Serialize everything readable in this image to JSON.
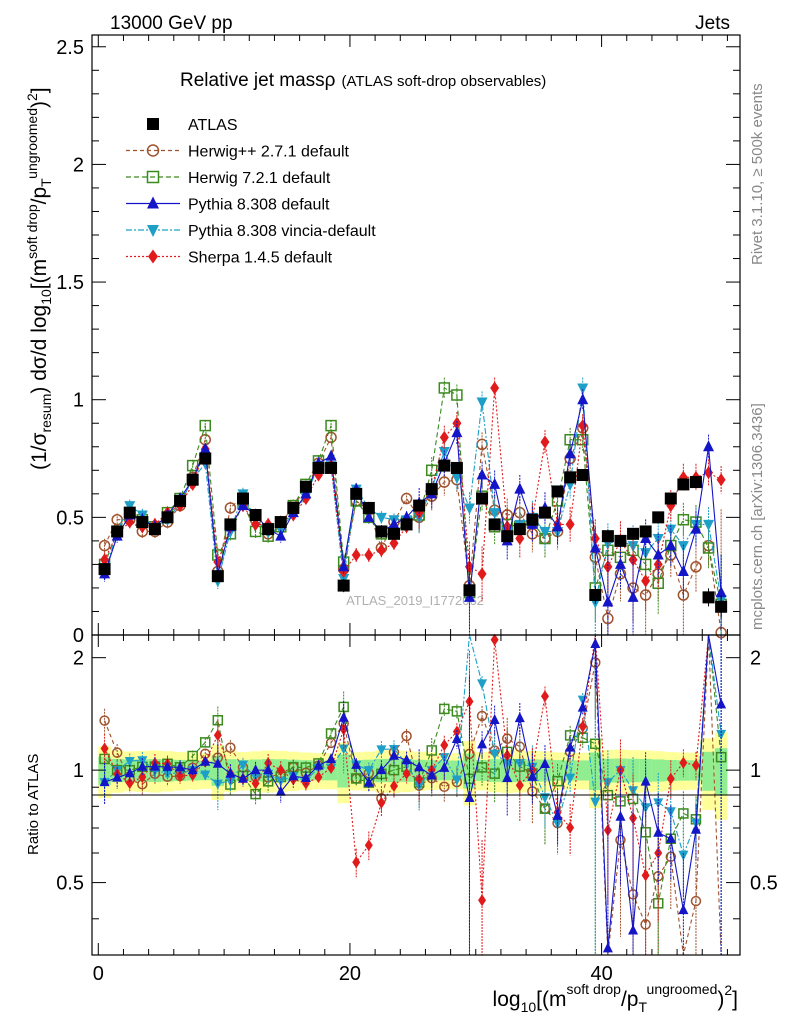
{
  "header": {
    "energy_label": "13000 GeV pp",
    "process_label": "Jets"
  },
  "side": {
    "rivet_label": "Rivet 3.1.10, ≥ 500k events",
    "mcplots_label": "mcplots.cern.ch [arXiv:1306.3436]"
  },
  "watermark": "ATLAS_2019_I1772062",
  "colors": {
    "atlas": "#000000",
    "herwigpp": "#a0522d",
    "herwig7": "#3a8a1e",
    "pythia": "#1515c8",
    "vincia": "#1e9fc8",
    "sherpa": "#e11b1b",
    "band_yellow": "#ffff99",
    "band_green": "#90ee90"
  },
  "chart_data": {
    "type": "line",
    "title": "Relative jet massρ",
    "subtitle": "(ATLAS soft-drop observables)",
    "ylabel": "(1/σresum) dσ/d log10[(m^soft drop/pT^ungroomed)^2]",
    "xlabel": "log10[(m^soft drop/pT^ungroomed)^2]",
    "ratio_ylabel": "Ratio to ATLAS",
    "xlim": [
      -0.5,
      51
    ],
    "ylim": [
      0,
      2.55
    ],
    "ratio_ylim": [
      0.32,
      2.3
    ],
    "x_ticks": [
      "0",
      "20",
      "40"
    ],
    "y_ticks": [
      "0",
      "0.5",
      "1",
      "1.5",
      "2",
      "2.5"
    ],
    "ratio_ticks": [
      "0.5",
      "1",
      "2"
    ],
    "x": [
      0.5,
      1.5,
      2.5,
      3.5,
      4.5,
      5.5,
      6.5,
      7.5,
      8.5,
      9.5,
      10.5,
      11.5,
      12.5,
      13.5,
      14.5,
      15.5,
      16.5,
      17.5,
      18.5,
      19.5,
      20.5,
      21.5,
      22.5,
      23.5,
      24.5,
      25.5,
      26.5,
      27.5,
      28.5,
      29.5,
      30.5,
      31.5,
      32.5,
      33.5,
      34.5,
      35.5,
      36.5,
      37.5,
      38.5,
      39.5,
      40.5,
      41.5,
      42.5,
      43.5,
      44.5,
      45.5,
      46.5,
      47.5,
      48.5,
      49.5
    ],
    "series": [
      {
        "key": "atlas",
        "name": "ATLAS",
        "marker": "square",
        "dash": "none",
        "values": [
          0.28,
          0.44,
          0.52,
          0.48,
          0.45,
          0.5,
          0.57,
          0.66,
          0.75,
          0.25,
          0.47,
          0.58,
          0.51,
          0.45,
          0.48,
          0.54,
          0.63,
          0.71,
          0.71,
          0.21,
          0.6,
          0.54,
          0.44,
          0.43,
          0.47,
          0.55,
          0.62,
          0.72,
          0.71,
          0.19,
          0.58,
          0.47,
          0.42,
          0.45,
          0.49,
          0.52,
          0.61,
          0.67,
          0.68,
          0.17,
          0.42,
          0.4,
          0.43,
          0.44,
          0.5,
          0.58,
          0.64,
          0.65,
          0.16,
          0.12
        ]
      },
      {
        "key": "herwigpp",
        "name": "Herwig++ 2.7.1 default",
        "marker": "circle-open",
        "dash": "4,3",
        "values": [
          0.38,
          0.49,
          0.49,
          0.44,
          0.44,
          0.48,
          0.55,
          0.67,
          0.83,
          0.27,
          0.54,
          0.59,
          0.49,
          0.43,
          0.47,
          0.55,
          0.62,
          0.73,
          0.84,
          0.28,
          0.57,
          0.53,
          0.37,
          0.48,
          0.58,
          0.5,
          0.59,
          0.65,
          0.66,
          0.21,
          0.81,
          0.53,
          0.51,
          0.52,
          0.43,
          0.41,
          0.44,
          0.75,
          0.88,
          0.33,
          0.07,
          0.26,
          0.2,
          0.17,
          0.26,
          0.34,
          0.17,
          0.29,
          0.38,
          0.01
        ]
      },
      {
        "key": "herwig7",
        "name": "Herwig 7.2.1 default",
        "marker": "square-open",
        "dash": "5,3",
        "values": [
          0.3,
          0.44,
          0.52,
          0.49,
          0.46,
          0.52,
          0.58,
          0.72,
          0.89,
          0.34,
          0.43,
          0.56,
          0.44,
          0.42,
          0.46,
          0.55,
          0.64,
          0.74,
          0.89,
          0.31,
          0.57,
          0.5,
          0.43,
          0.43,
          0.48,
          0.51,
          0.7,
          1.05,
          1.02,
          0.18,
          0.59,
          0.46,
          0.47,
          0.46,
          0.48,
          0.41,
          0.57,
          0.83,
          0.83,
          0.2,
          0.36,
          0.33,
          0.36,
          0.3,
          0.22,
          0.38,
          0.49,
          0.48,
          0.37,
          0.13
        ]
      },
      {
        "key": "pythia",
        "name": "Pythia 8.308 default",
        "marker": "triangle-up",
        "dash": "none",
        "values": [
          0.26,
          0.42,
          0.51,
          0.49,
          0.46,
          0.51,
          0.58,
          0.66,
          0.79,
          0.26,
          0.46,
          0.55,
          0.51,
          0.45,
          0.42,
          0.52,
          0.6,
          0.73,
          0.76,
          0.29,
          0.62,
          0.5,
          0.44,
          0.47,
          0.5,
          0.56,
          0.6,
          0.73,
          0.86,
          0.16,
          0.68,
          0.64,
          0.4,
          0.62,
          0.47,
          0.54,
          0.46,
          0.77,
          1.0,
          0.37,
          0.14,
          0.3,
          0.16,
          0.41,
          0.34,
          0.38,
          0.27,
          0.45,
          0.8,
          0.18
        ]
      },
      {
        "key": "vincia",
        "name": "Pythia 8.308 vincia-default",
        "marker": "triangle-down",
        "dash": "6,2,2,2",
        "values": [
          0.26,
          0.44,
          0.55,
          0.51,
          0.45,
          0.49,
          0.56,
          0.66,
          0.73,
          0.23,
          0.44,
          0.6,
          0.49,
          0.44,
          0.45,
          0.52,
          0.59,
          0.72,
          0.72,
          0.24,
          0.62,
          0.54,
          0.5,
          0.49,
          0.49,
          0.5,
          0.62,
          0.78,
          0.67,
          0.54,
          0.99,
          0.52,
          0.44,
          0.47,
          0.5,
          0.44,
          0.44,
          0.64,
          1.05,
          0.14,
          0.39,
          0.4,
          0.38,
          0.35,
          0.41,
          0.45,
          0.38,
          0.47,
          0.47,
          0.15
        ]
      },
      {
        "key": "sherpa",
        "name": "Sherpa 1.4.5 default",
        "marker": "diamond",
        "dash": "2,2",
        "values": [
          0.32,
          0.43,
          0.48,
          0.46,
          0.47,
          0.52,
          0.55,
          0.64,
          0.79,
          0.31,
          0.46,
          0.55,
          0.47,
          0.47,
          0.48,
          0.51,
          0.58,
          0.68,
          0.72,
          0.27,
          0.34,
          0.34,
          0.36,
          0.39,
          0.46,
          0.52,
          0.62,
          0.84,
          0.9,
          0.29,
          0.26,
          1.05,
          0.46,
          0.41,
          0.49,
          0.82,
          0.47,
          0.47,
          0.89,
          0.41,
          0.29,
          0.4,
          0.32,
          0.23,
          0.3,
          0.55,
          0.67,
          0.67,
          0.69,
          0.66
        ]
      }
    ]
  }
}
